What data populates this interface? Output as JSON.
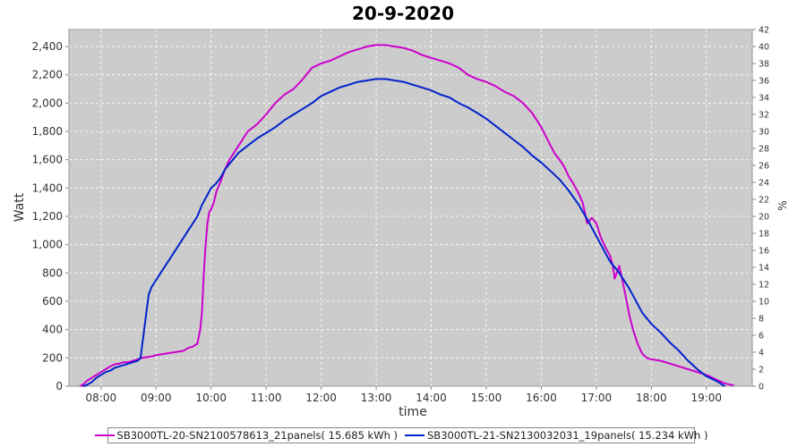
{
  "chart_data": {
    "type": "line",
    "title": "20-9-2020",
    "xlabel": "time",
    "ylabel": "Watt",
    "y2label": "%",
    "x_ticks": [
      "08:00",
      "09:00",
      "10:00",
      "11:00",
      "12:00",
      "13:00",
      "14:00",
      "15:00",
      "16:00",
      "17:00",
      "18:00",
      "19:00"
    ],
    "xlim": [
      "07:25",
      "19:50"
    ],
    "ylim": [
      0,
      2520
    ],
    "y_ticks": [
      0,
      200,
      400,
      600,
      800,
      1000,
      1200,
      1400,
      1600,
      1800,
      2000,
      2200,
      2400
    ],
    "y_tick_labels": [
      "0",
      "200",
      "400",
      "600",
      "800",
      "1,000",
      "1,200",
      "1,400",
      "1,600",
      "1,800",
      "2,000",
      "2,200",
      "2,400"
    ],
    "y2lim": [
      0,
      42
    ],
    "y2_ticks": [
      0,
      2,
      4,
      6,
      8,
      10,
      12,
      14,
      16,
      18,
      20,
      22,
      24,
      26,
      28,
      30,
      32,
      34,
      36,
      38,
      40,
      42
    ],
    "grid": true,
    "legend_position": "bottom",
    "plot_background": "#cccccc",
    "series": [
      {
        "name": "SB3000TL-20-SN2100578613_21panels( 15.685 kWh )",
        "color": "#cc00cc",
        "points": [
          [
            "07:37",
            0
          ],
          [
            "07:40",
            10
          ],
          [
            "07:45",
            40
          ],
          [
            "07:50",
            60
          ],
          [
            "07:55",
            80
          ],
          [
            "08:00",
            100
          ],
          [
            "08:05",
            120
          ],
          [
            "08:10",
            140
          ],
          [
            "08:15",
            155
          ],
          [
            "08:20",
            160
          ],
          [
            "08:25",
            170
          ],
          [
            "08:30",
            170
          ],
          [
            "08:35",
            180
          ],
          [
            "08:40",
            190
          ],
          [
            "08:45",
            200
          ],
          [
            "08:50",
            205
          ],
          [
            "08:55",
            210
          ],
          [
            "09:00",
            220
          ],
          [
            "09:10",
            230
          ],
          [
            "09:20",
            240
          ],
          [
            "09:30",
            250
          ],
          [
            "09:35",
            270
          ],
          [
            "09:40",
            280
          ],
          [
            "09:45",
            300
          ],
          [
            "09:48",
            400
          ],
          [
            "09:50",
            520
          ],
          [
            "09:52",
            800
          ],
          [
            "09:54",
            1000
          ],
          [
            "09:56",
            1150
          ],
          [
            "09:58",
            1230
          ],
          [
            "10:00",
            1250
          ],
          [
            "10:03",
            1300
          ],
          [
            "10:06",
            1380
          ],
          [
            "10:10",
            1440
          ],
          [
            "10:15",
            1530
          ],
          [
            "10:20",
            1600
          ],
          [
            "10:30",
            1700
          ],
          [
            "10:40",
            1800
          ],
          [
            "10:50",
            1850
          ],
          [
            "11:00",
            1920
          ],
          [
            "11:10",
            2000
          ],
          [
            "11:20",
            2060
          ],
          [
            "11:30",
            2100
          ],
          [
            "11:40",
            2170
          ],
          [
            "11:50",
            2250
          ],
          [
            "12:00",
            2280
          ],
          [
            "12:10",
            2300
          ],
          [
            "12:20",
            2330
          ],
          [
            "12:30",
            2360
          ],
          [
            "12:40",
            2380
          ],
          [
            "12:50",
            2400
          ],
          [
            "13:00",
            2410
          ],
          [
            "13:10",
            2410
          ],
          [
            "13:20",
            2400
          ],
          [
            "13:30",
            2390
          ],
          [
            "13:40",
            2370
          ],
          [
            "13:50",
            2340
          ],
          [
            "14:00",
            2320
          ],
          [
            "14:10",
            2300
          ],
          [
            "14:20",
            2280
          ],
          [
            "14:30",
            2250
          ],
          [
            "14:40",
            2200
          ],
          [
            "14:50",
            2170
          ],
          [
            "15:00",
            2150
          ],
          [
            "15:10",
            2120
          ],
          [
            "15:20",
            2080
          ],
          [
            "15:30",
            2050
          ],
          [
            "15:40",
            2000
          ],
          [
            "15:50",
            1930
          ],
          [
            "16:00",
            1830
          ],
          [
            "16:10",
            1700
          ],
          [
            "16:15",
            1640
          ],
          [
            "16:20",
            1600
          ],
          [
            "16:25",
            1550
          ],
          [
            "16:30",
            1480
          ],
          [
            "16:35",
            1430
          ],
          [
            "16:40",
            1370
          ],
          [
            "16:45",
            1300
          ],
          [
            "16:50",
            1150
          ],
          [
            "16:55",
            1190
          ],
          [
            "17:00",
            1150
          ],
          [
            "17:05",
            1050
          ],
          [
            "17:10",
            980
          ],
          [
            "17:15",
            920
          ],
          [
            "17:18",
            850
          ],
          [
            "17:20",
            760
          ],
          [
            "17:25",
            850
          ],
          [
            "17:30",
            700
          ],
          [
            "17:33",
            600
          ],
          [
            "17:36",
            500
          ],
          [
            "17:40",
            400
          ],
          [
            "17:45",
            300
          ],
          [
            "17:50",
            230
          ],
          [
            "17:55",
            200
          ],
          [
            "18:00",
            190
          ],
          [
            "18:10",
            180
          ],
          [
            "18:20",
            160
          ],
          [
            "18:30",
            140
          ],
          [
            "18:40",
            120
          ],
          [
            "18:50",
            100
          ],
          [
            "19:00",
            80
          ],
          [
            "19:10",
            50
          ],
          [
            "19:20",
            20
          ],
          [
            "19:30",
            5
          ]
        ]
      },
      {
        "name": "SB3000TL-21-SN2130032031_19panels( 15.234 kWh )",
        "color": "#0022cc",
        "points": [
          [
            "07:40",
            0
          ],
          [
            "07:45",
            10
          ],
          [
            "07:50",
            30
          ],
          [
            "07:55",
            60
          ],
          [
            "08:00",
            80
          ],
          [
            "08:05",
            100
          ],
          [
            "08:10",
            110
          ],
          [
            "08:15",
            130
          ],
          [
            "08:20",
            140
          ],
          [
            "08:25",
            150
          ],
          [
            "08:30",
            160
          ],
          [
            "08:35",
            170
          ],
          [
            "08:40",
            180
          ],
          [
            "08:43",
            200
          ],
          [
            "08:46",
            350
          ],
          [
            "08:49",
            500
          ],
          [
            "08:52",
            650
          ],
          [
            "08:55",
            700
          ],
          [
            "09:00",
            750
          ],
          [
            "09:05",
            800
          ],
          [
            "09:10",
            850
          ],
          [
            "09:15",
            900
          ],
          [
            "09:20",
            950
          ],
          [
            "09:25",
            1000
          ],
          [
            "09:30",
            1050
          ],
          [
            "09:35",
            1100
          ],
          [
            "09:40",
            1150
          ],
          [
            "09:45",
            1200
          ],
          [
            "09:50",
            1280
          ],
          [
            "09:55",
            1340
          ],
          [
            "10:00",
            1400
          ],
          [
            "10:05",
            1430
          ],
          [
            "10:10",
            1470
          ],
          [
            "10:15",
            1530
          ],
          [
            "10:20",
            1570
          ],
          [
            "10:30",
            1650
          ],
          [
            "10:40",
            1700
          ],
          [
            "10:50",
            1750
          ],
          [
            "11:00",
            1790
          ],
          [
            "11:10",
            1830
          ],
          [
            "11:20",
            1880
          ],
          [
            "11:30",
            1920
          ],
          [
            "11:40",
            1960
          ],
          [
            "11:50",
            2000
          ],
          [
            "12:00",
            2050
          ],
          [
            "12:10",
            2080
          ],
          [
            "12:20",
            2110
          ],
          [
            "12:30",
            2130
          ],
          [
            "12:40",
            2150
          ],
          [
            "12:50",
            2160
          ],
          [
            "13:00",
            2170
          ],
          [
            "13:10",
            2170
          ],
          [
            "13:20",
            2160
          ],
          [
            "13:30",
            2150
          ],
          [
            "13:40",
            2130
          ],
          [
            "13:50",
            2110
          ],
          [
            "14:00",
            2090
          ],
          [
            "14:10",
            2060
          ],
          [
            "14:20",
            2040
          ],
          [
            "14:30",
            2000
          ],
          [
            "14:40",
            1970
          ],
          [
            "14:50",
            1930
          ],
          [
            "15:00",
            1890
          ],
          [
            "15:10",
            1840
          ],
          [
            "15:20",
            1790
          ],
          [
            "15:30",
            1740
          ],
          [
            "15:40",
            1690
          ],
          [
            "15:50",
            1630
          ],
          [
            "16:00",
            1580
          ],
          [
            "16:10",
            1520
          ],
          [
            "16:20",
            1460
          ],
          [
            "16:30",
            1380
          ],
          [
            "16:40",
            1290
          ],
          [
            "16:50",
            1180
          ],
          [
            "17:00",
            1060
          ],
          [
            "17:05",
            1000
          ],
          [
            "17:10",
            940
          ],
          [
            "17:15",
            880
          ],
          [
            "17:20",
            840
          ],
          [
            "17:25",
            800
          ],
          [
            "17:30",
            750
          ],
          [
            "17:35",
            700
          ],
          [
            "17:40",
            640
          ],
          [
            "17:45",
            580
          ],
          [
            "17:50",
            520
          ],
          [
            "17:55",
            480
          ],
          [
            "18:00",
            440
          ],
          [
            "18:10",
            380
          ],
          [
            "18:20",
            310
          ],
          [
            "18:30",
            250
          ],
          [
            "18:40",
            180
          ],
          [
            "18:50",
            120
          ],
          [
            "19:00",
            70
          ],
          [
            "19:10",
            40
          ],
          [
            "19:15",
            20
          ],
          [
            "19:20",
            0
          ]
        ]
      }
    ]
  }
}
